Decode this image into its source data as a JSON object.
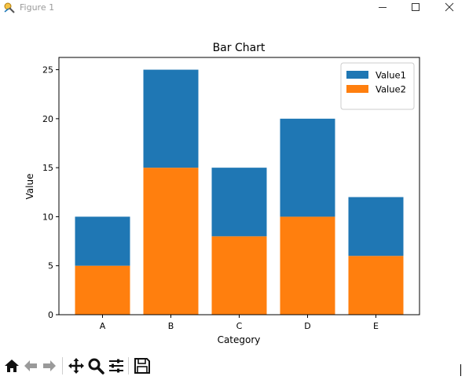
{
  "window": {
    "title": "Figure 1",
    "controls": [
      "minimize-icon",
      "maximize-icon",
      "close-icon"
    ]
  },
  "toolbar": {
    "buttons": [
      "home-icon",
      "back-arrow-icon",
      "forward-arrow-icon",
      "pan-icon",
      "zoom-icon",
      "configure-subplots-icon",
      "save-icon"
    ]
  },
  "chart_data": {
    "type": "bar",
    "stacked": true,
    "title": "Bar Chart",
    "xlabel": "Category",
    "ylabel": "Value",
    "categories": [
      "A",
      "B",
      "C",
      "D",
      "E"
    ],
    "series": [
      {
        "name": "Value1",
        "values": [
          5,
          10,
          7,
          10,
          6
        ],
        "color": "#1f77b4"
      },
      {
        "name": "Value2",
        "values": [
          5,
          15,
          8,
          10,
          6
        ],
        "color": "#ff7f0e"
      }
    ],
    "ylim": [
      0,
      26.25
    ],
    "yticks": [
      0,
      5,
      10,
      15,
      20,
      25
    ],
    "legend": "top-right",
    "grid": false
  }
}
